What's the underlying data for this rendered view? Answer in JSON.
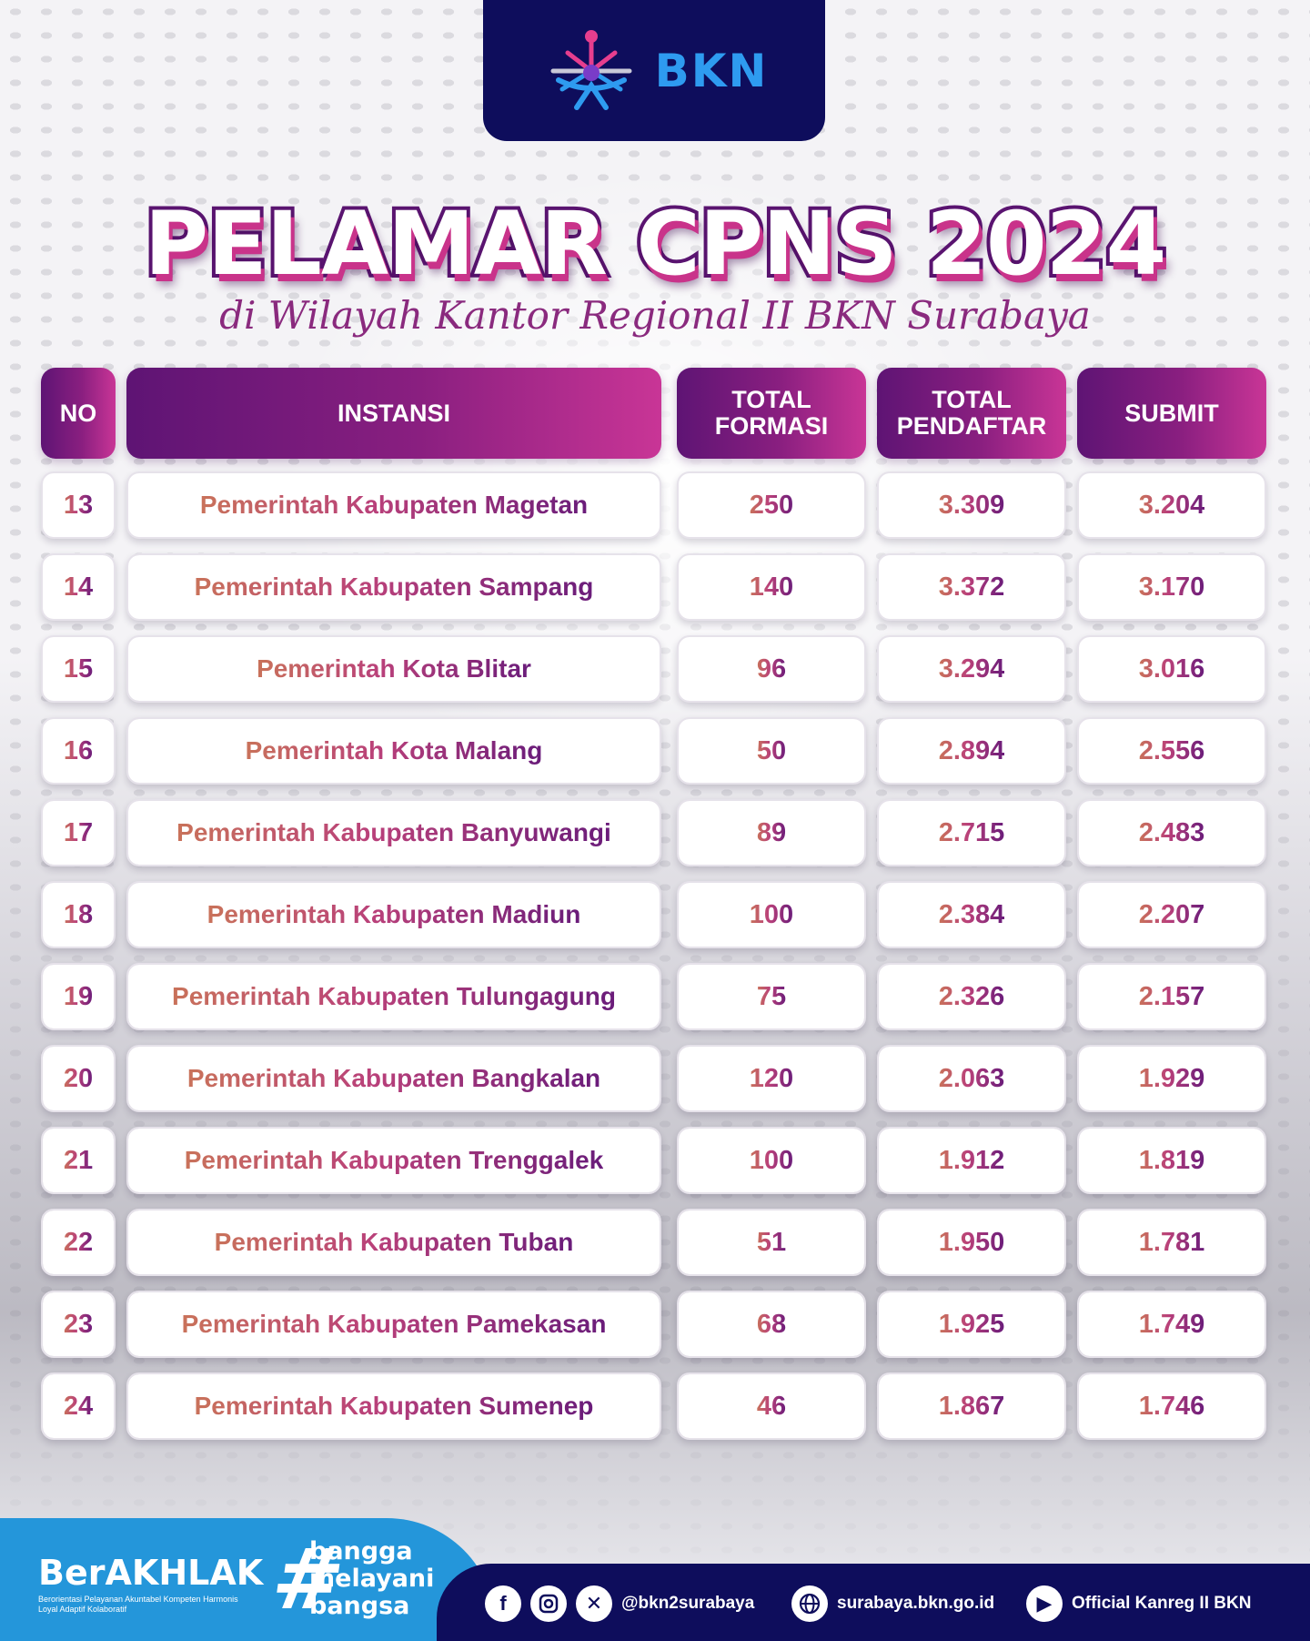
{
  "brand": {
    "logo_text": "BKN"
  },
  "title": "PELAMAR CPNS 2024",
  "subtitle": "di Wilayah Kantor Regional II BKN Surabaya",
  "table": {
    "headers": {
      "no": "NO",
      "instansi": "INSTANSI",
      "formasi_line1": "TOTAL",
      "formasi_line2": "FORMASI",
      "pendaftar_line1": "TOTAL",
      "pendaftar_line2": "PENDAFTAR",
      "submit": "SUBMIT"
    },
    "rows": [
      {
        "no": "13",
        "instansi": "Pemerintah Kabupaten Magetan",
        "formasi": "250",
        "pendaftar": "3.309",
        "submit": "3.204"
      },
      {
        "no": "14",
        "instansi": "Pemerintah Kabupaten Sampang",
        "formasi": "140",
        "pendaftar": "3.372",
        "submit": "3.170"
      },
      {
        "no": "15",
        "instansi": "Pemerintah Kota Blitar",
        "formasi": "96",
        "pendaftar": "3.294",
        "submit": "3.016"
      },
      {
        "no": "16",
        "instansi": "Pemerintah Kota Malang",
        "formasi": "50",
        "pendaftar": "2.894",
        "submit": "2.556"
      },
      {
        "no": "17",
        "instansi": "Pemerintah Kabupaten Banyuwangi",
        "formasi": "89",
        "pendaftar": "2.715",
        "submit": "2.483"
      },
      {
        "no": "18",
        "instansi": "Pemerintah Kabupaten Madiun",
        "formasi": "100",
        "pendaftar": "2.384",
        "submit": "2.207"
      },
      {
        "no": "19",
        "instansi": "Pemerintah Kabupaten Tulungagung",
        "formasi": "75",
        "pendaftar": "2.326",
        "submit": "2.157"
      },
      {
        "no": "20",
        "instansi": "Pemerintah Kabupaten Bangkalan",
        "formasi": "120",
        "pendaftar": "2.063",
        "submit": "1.929"
      },
      {
        "no": "21",
        "instansi": "Pemerintah Kabupaten Trenggalek",
        "formasi": "100",
        "pendaftar": "1.912",
        "submit": "1.819"
      },
      {
        "no": "22",
        "instansi": "Pemerintah Kabupaten Tuban",
        "formasi": "51",
        "pendaftar": "1.950",
        "submit": "1.781"
      },
      {
        "no": "23",
        "instansi": "Pemerintah Kabupaten Pamekasan",
        "formasi": "68",
        "pendaftar": "1.925",
        "submit": "1.749"
      },
      {
        "no": "24",
        "instansi": "Pemerintah Kabupaten Sumenep",
        "formasi": "46",
        "pendaftar": "1.867",
        "submit": "1.746"
      }
    ]
  },
  "footer": {
    "berakhlak": "BerAKHLAK",
    "berakhlak_tagline": "Berorientasi Pelayanan Akuntabel Kompeten Harmonis Loyal Adaptif Kolaboratif",
    "hashtag_symbol": "#",
    "slogan_line1": "bangga",
    "slogan_line2": "melayani",
    "slogan_line3": "bangsa",
    "social_handle": "@bkn2surabaya",
    "website": "surabaya.bkn.go.id",
    "youtube": "Official Kanreg II BKN",
    "icons": [
      "facebook-icon",
      "instagram-icon",
      "x-icon",
      "globe-icon",
      "youtube-icon"
    ]
  },
  "colors": {
    "navy": "#0e0d5c",
    "header_gradient_start": "#5e1474",
    "header_gradient_end": "#c93596",
    "footer_blue": "#2496da",
    "logo_blue": "#2e9bf0"
  }
}
